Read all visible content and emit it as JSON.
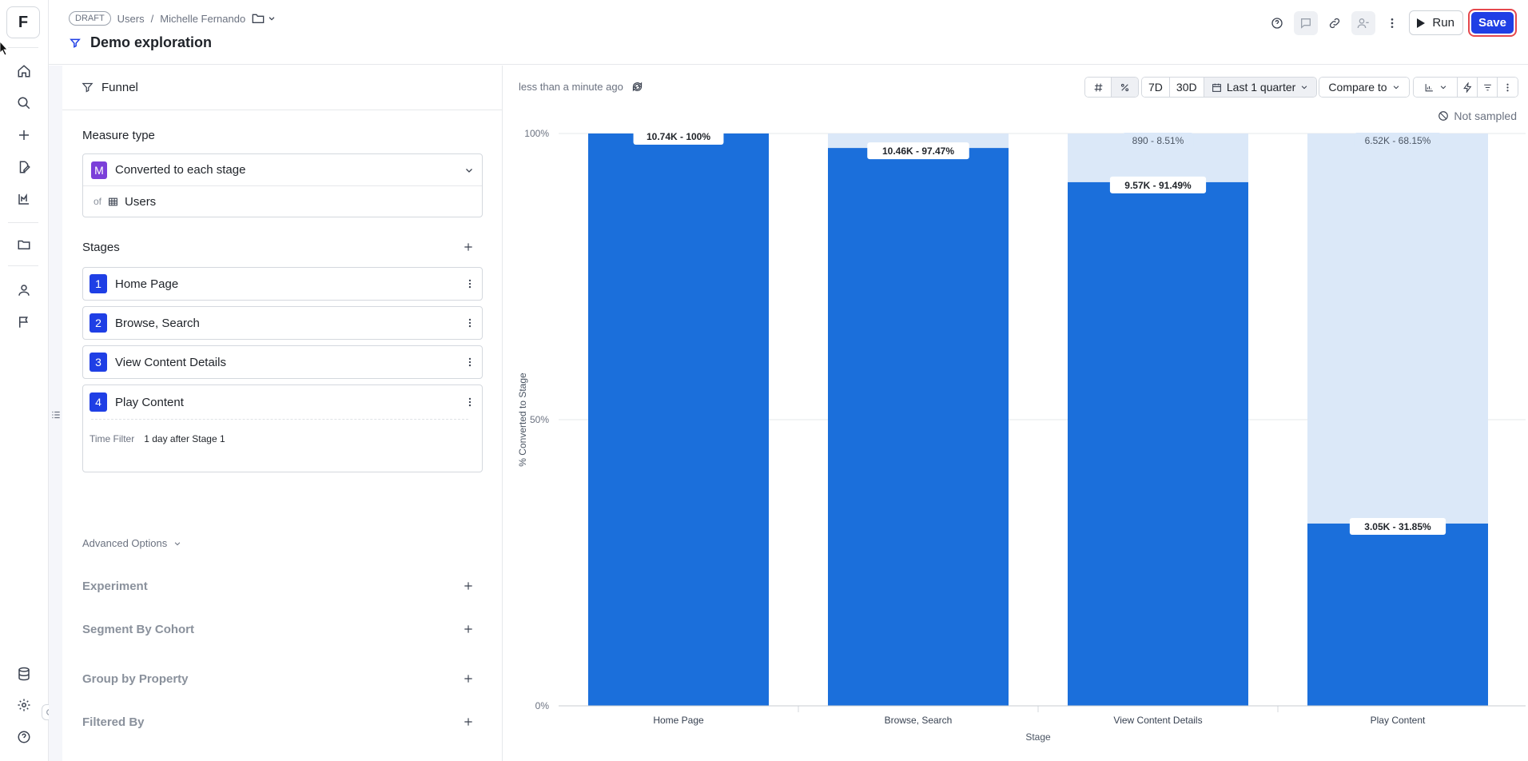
{
  "app": {
    "logo_letter": "F"
  },
  "header": {
    "draft_badge": "DRAFT",
    "breadcrumb": [
      "Users",
      "Michelle Fernando"
    ],
    "breadcrumb_sep": "/",
    "title": "Demo exploration",
    "run_label": "Run",
    "save_label": "Save"
  },
  "panel": {
    "section_title": "Funnel",
    "measure_type_label": "Measure type",
    "measure_badge": "M",
    "measure_value": "Converted to each stage",
    "of_label": "of",
    "of_entity": "Users",
    "stages_label": "Stages",
    "stages": [
      {
        "num": "1",
        "name": "Home Page"
      },
      {
        "num": "2",
        "name": "Browse, Search"
      },
      {
        "num": "3",
        "name": "View Content Details"
      },
      {
        "num": "4",
        "name": "Play Content"
      }
    ],
    "time_filter_label": "Time Filter",
    "time_filter_value": "1 day after Stage 1",
    "advanced_options": "Advanced Options",
    "experiment": "Experiment",
    "segment_by_cohort": "Segment By Cohort",
    "group_by_property": "Group by Property",
    "filtered_by": "Filtered By"
  },
  "toolbar": {
    "updated": "less than a minute ago",
    "range_7d": "7D",
    "range_30d": "30D",
    "date_range": "Last 1 quarter",
    "compare_to": "Compare to",
    "sampling": "Not sampled"
  },
  "colors": {
    "accent": "#1f3fe5",
    "bar": "#1b6fdb",
    "bar_dropoff": "#dbe8f8",
    "measure_badge": "#7b3fd9",
    "save_outline": "#e5484d"
  },
  "chart_data": {
    "type": "bar",
    "xlabel": "Stage",
    "ylabel": "% Converted to Stage",
    "ylim": [
      0,
      100
    ],
    "y_ticks": [
      "0%",
      "50%",
      "100%"
    ],
    "categories": [
      "Home Page",
      "Browse, Search",
      "View Content Details",
      "Play Content"
    ],
    "series": [
      {
        "values": [
          100,
          97.47,
          91.49,
          31.85
        ]
      },
      {
        "values": [
          0,
          2.53,
          8.51,
          68.15
        ]
      }
    ],
    "labels_converted": [
      "10.74K - 100%",
      "10.46K - 97.47%",
      "9.57K - 91.49%",
      "3.05K - 31.85%"
    ],
    "labels_dropoff": [
      "",
      "",
      "890 - 8.51%",
      "6.52K - 68.15%"
    ],
    "grid": true,
    "legend": "none"
  }
}
